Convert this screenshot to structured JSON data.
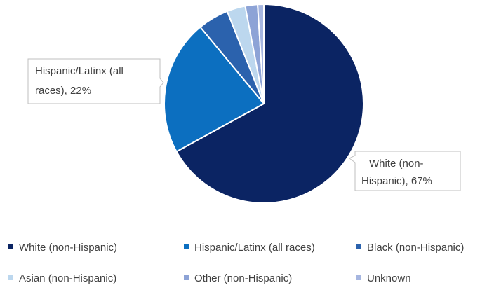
{
  "chart_data": {
    "type": "pie",
    "title": "",
    "slices": [
      {
        "label": "White (non-Hispanic)",
        "value": 67,
        "color": "#0b2463"
      },
      {
        "label": "Hispanic/Latinx (all races)",
        "value": 22,
        "color": "#0c6fc0"
      },
      {
        "label": "Black (non-Hispanic)",
        "value": 5,
        "color": "#2b62ad"
      },
      {
        "label": "Asian (non-Hispanic)",
        "value": 3,
        "color": "#bcd7ee"
      },
      {
        "label": "Other (non-Hispanic)",
        "value": 2,
        "color": "#8da3d6"
      },
      {
        "label": "Unknown",
        "value": 1,
        "color": "#a6b6e0"
      }
    ],
    "data_labels": [
      {
        "lines": [
          "Hispanic/Latinx (all",
          "races), 22%"
        ]
      },
      {
        "lines": [
          "White (non-",
          "Hispanic), 67%"
        ]
      }
    ],
    "legend": {
      "position": "bottom",
      "items": [
        "White (non-Hispanic)",
        "Hispanic/Latinx (all races)",
        "Black (non-Hispanic)",
        "Asian (non-Hispanic)",
        "Other (non-Hispanic)",
        "Unknown"
      ]
    }
  }
}
